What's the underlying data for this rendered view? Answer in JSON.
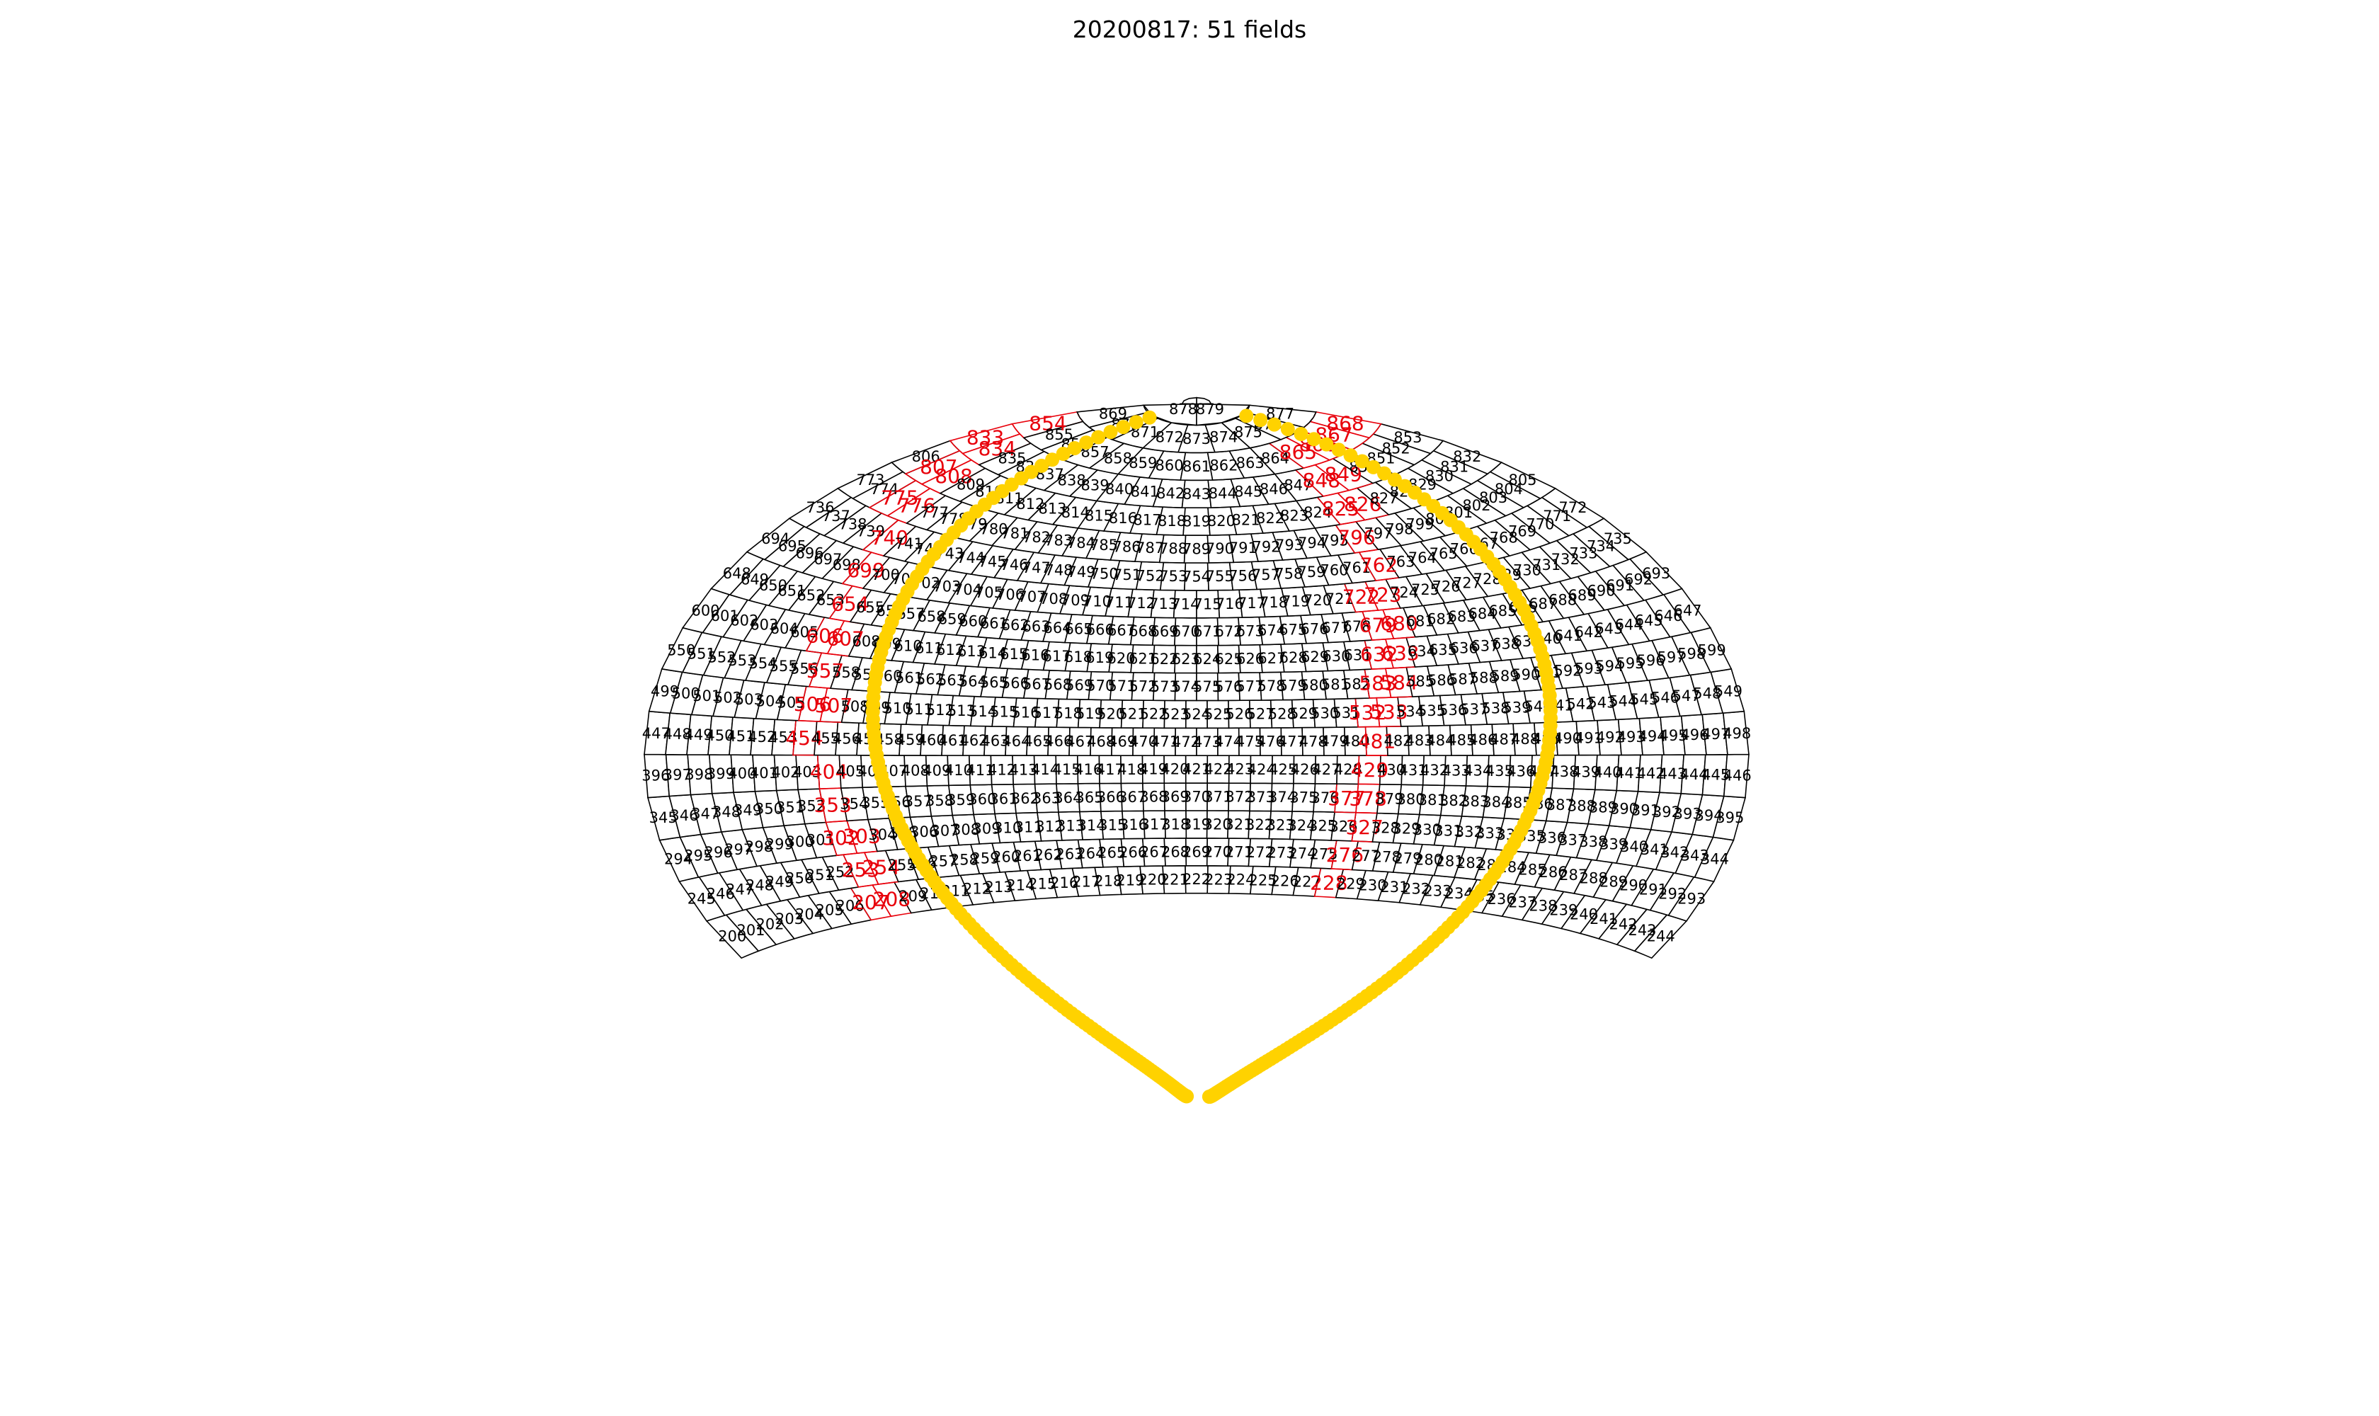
{
  "title": "20200817: 51 fields",
  "colors": {
    "grid": "#000000",
    "highlight": "#e8000b",
    "track": "#ffd200"
  },
  "chart_data": {
    "type": "sky-field-map",
    "projection": "aitoff",
    "rows": [
      {
        "dec": -31,
        "first": 200,
        "last": 244
      },
      {
        "dec": -24,
        "first": 245,
        "last": 293
      },
      {
        "dec": -17,
        "first": 294,
        "last": 344
      },
      {
        "dec": -10,
        "first": 345,
        "last": 395
      },
      {
        "dec": -3,
        "first": 396,
        "last": 446
      },
      {
        "dec": 4,
        "first": 447,
        "last": 498
      },
      {
        "dec": 11,
        "first": 499,
        "last": 549
      },
      {
        "dec": 18,
        "first": 550,
        "last": 599
      },
      {
        "dec": 25,
        "first": 600,
        "last": 647
      },
      {
        "dec": 32,
        "first": 648,
        "last": 693
      },
      {
        "dec": 39,
        "first": 694,
        "last": 735
      },
      {
        "dec": 46,
        "first": 736,
        "last": 772
      },
      {
        "dec": 53,
        "first": 773,
        "last": 805
      },
      {
        "dec": 60,
        "first": 806,
        "last": 832
      },
      {
        "dec": 67,
        "first": 833,
        "last": 853
      },
      {
        "dec": 74,
        "first": 854,
        "last": 868
      },
      {
        "dec": 81,
        "first": 869,
        "last": 877
      },
      {
        "dec": 88,
        "first": 878,
        "last": 879
      }
    ],
    "highlighted_fields": [
      207,
      208,
      228,
      253,
      254,
      276,
      302,
      303,
      327,
      353,
      377,
      378,
      404,
      429,
      454,
      481,
      506,
      507,
      532,
      533,
      557,
      583,
      584,
      606,
      607,
      632,
      633,
      654,
      679,
      680,
      699,
      722,
      723,
      740,
      762,
      775,
      776,
      796,
      807,
      808,
      825,
      826,
      833,
      834,
      848,
      849,
      854,
      865,
      866,
      867,
      868
    ],
    "highlighted_count": 51
  }
}
